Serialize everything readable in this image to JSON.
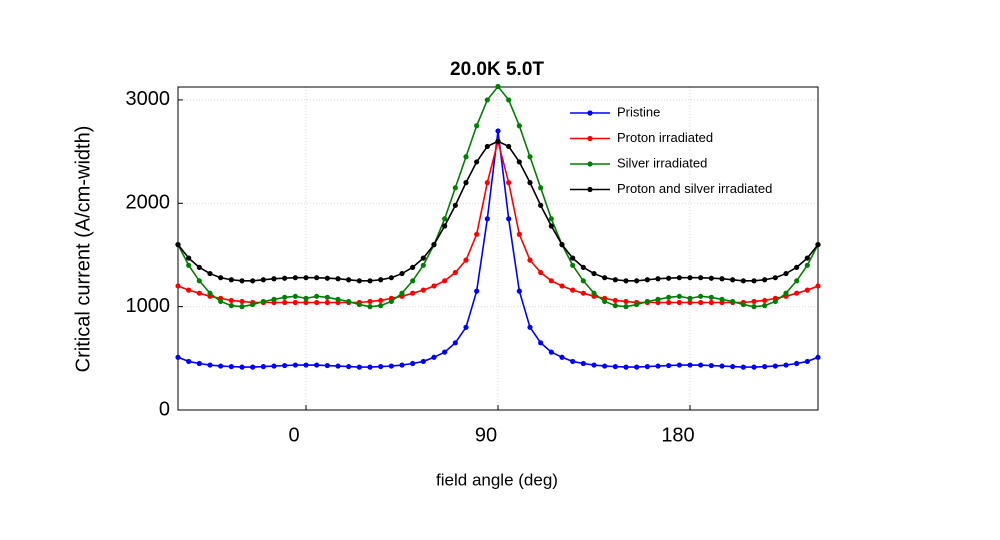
{
  "chart_data": {
    "type": "line",
    "title": "20.0K 5.0T",
    "xlabel": "field angle (deg)",
    "ylabel": "Critical current (A/cm-width)",
    "x": [
      -60,
      -55,
      -50,
      -45,
      -40,
      -35,
      -30,
      -25,
      -20,
      -15,
      -10,
      -5,
      0,
      5,
      10,
      15,
      20,
      25,
      30,
      35,
      40,
      45,
      50,
      55,
      60,
      65,
      70,
      75,
      80,
      85,
      90,
      95,
      100,
      105,
      110,
      115,
      120,
      125,
      130,
      135,
      140,
      145,
      150,
      155,
      160,
      165,
      170,
      175,
      180,
      185,
      190,
      195,
      200,
      205,
      210,
      215,
      220,
      225,
      230,
      235,
      240
    ],
    "series": [
      {
        "name": "Pristine",
        "color": "#0000ff",
        "values": [
          510,
          470,
          450,
          435,
          425,
          420,
          415,
          415,
          420,
          425,
          430,
          435,
          435,
          435,
          430,
          425,
          420,
          415,
          415,
          420,
          425,
          435,
          450,
          470,
          510,
          560,
          650,
          800,
          1150,
          1850,
          2700,
          1850,
          1150,
          800,
          650,
          560,
          510,
          470,
          450,
          435,
          425,
          420,
          415,
          415,
          420,
          425,
          430,
          435,
          435,
          435,
          430,
          425,
          420,
          415,
          415,
          420,
          425,
          435,
          450,
          470,
          510
        ]
      },
      {
        "name": "Proton irradiated",
        "color": "#ff0000",
        "values": [
          1200,
          1160,
          1130,
          1100,
          1080,
          1060,
          1050,
          1040,
          1040,
          1040,
          1040,
          1040,
          1040,
          1040,
          1040,
          1040,
          1040,
          1040,
          1050,
          1060,
          1080,
          1100,
          1130,
          1160,
          1200,
          1250,
          1330,
          1450,
          1700,
          2200,
          2600,
          2200,
          1700,
          1450,
          1330,
          1250,
          1200,
          1160,
          1130,
          1100,
          1080,
          1060,
          1050,
          1040,
          1040,
          1040,
          1040,
          1040,
          1040,
          1040,
          1040,
          1040,
          1040,
          1040,
          1050,
          1060,
          1080,
          1100,
          1130,
          1160,
          1200
        ]
      },
      {
        "name": "Silver irradiated",
        "color": "#008000",
        "values": [
          1600,
          1400,
          1250,
          1130,
          1050,
          1010,
          1000,
          1020,
          1050,
          1070,
          1090,
          1100,
          1080,
          1100,
          1090,
          1070,
          1050,
          1020,
          1000,
          1010,
          1050,
          1130,
          1250,
          1400,
          1600,
          1850,
          2150,
          2450,
          2750,
          3000,
          3130,
          3000,
          2750,
          2450,
          2150,
          1850,
          1600,
          1400,
          1250,
          1130,
          1050,
          1010,
          1000,
          1020,
          1050,
          1070,
          1090,
          1100,
          1080,
          1100,
          1090,
          1070,
          1050,
          1020,
          1000,
          1010,
          1050,
          1130,
          1250,
          1400,
          1600
        ]
      },
      {
        "name": "Proton and silver irradiated",
        "color": "#000000",
        "values": [
          1600,
          1470,
          1380,
          1320,
          1280,
          1260,
          1250,
          1250,
          1260,
          1270,
          1275,
          1280,
          1280,
          1280,
          1275,
          1270,
          1260,
          1250,
          1250,
          1260,
          1280,
          1320,
          1380,
          1470,
          1600,
          1780,
          1980,
          2200,
          2400,
          2550,
          2600,
          2550,
          2400,
          2200,
          1980,
          1780,
          1600,
          1470,
          1380,
          1320,
          1280,
          1260,
          1250,
          1250,
          1260,
          1270,
          1275,
          1280,
          1280,
          1280,
          1275,
          1270,
          1260,
          1250,
          1250,
          1260,
          1280,
          1320,
          1380,
          1470,
          1600
        ]
      }
    ],
    "xlim": [
      -60,
      240
    ],
    "xticks": [
      0,
      90,
      180
    ],
    "ylim": [
      0,
      3125
    ],
    "yticks": [
      0,
      1000,
      2000,
      3000
    ],
    "grid": true,
    "legend": "upper right"
  }
}
